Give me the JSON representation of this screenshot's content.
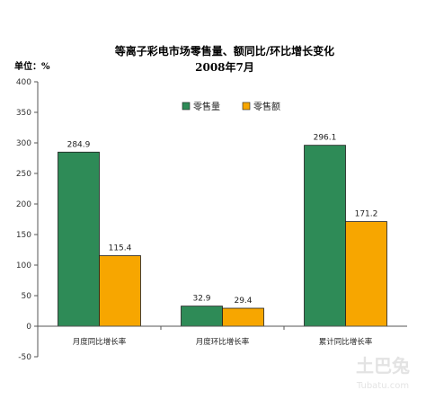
{
  "chart_data": {
    "type": "bar",
    "title": "等离子彩电市场零售量、额同比/环比增长变化",
    "subtitle": "2008年7月",
    "ylabel": "单位：%",
    "categories": [
      "月度同比增长率",
      "月度环比增长率",
      "累计同比增长率"
    ],
    "series": [
      {
        "name": "零售量",
        "values": [
          284.9,
          32.9,
          296.1
        ],
        "labels": [
          "284.9",
          "32.9",
          "296.1"
        ],
        "color": "#2e8b57"
      },
      {
        "name": "零售额",
        "values": [
          115.4,
          29.4,
          171.2
        ],
        "labels": [
          "115.4",
          "29.4",
          "171.2"
        ],
        "color": "#f7a600"
      }
    ],
    "ylim": [
      -50,
      400
    ],
    "yticks": [
      "400",
      "350",
      "300",
      "250",
      "200",
      "150",
      "100",
      "50",
      "0",
      "-50"
    ],
    "ytick_values": [
      400,
      350,
      300,
      250,
      200,
      150,
      100,
      50,
      0,
      -50
    ],
    "legend_position": "top-center",
    "grid": false
  },
  "watermark": {
    "logo_text": "土巴兔",
    "site": "Tubatu.com"
  }
}
